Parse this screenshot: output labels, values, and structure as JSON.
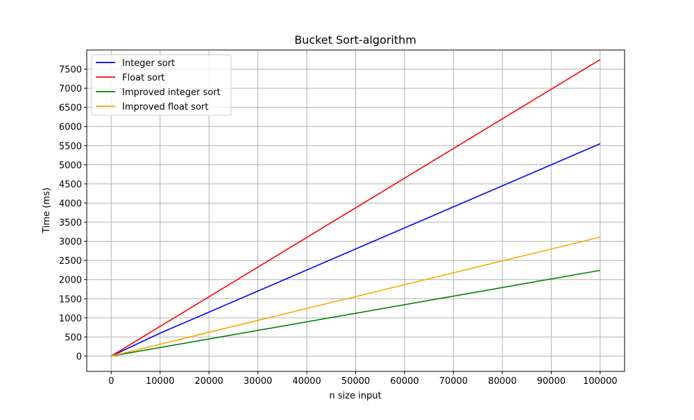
{
  "chart_data": {
    "type": "line",
    "title": "Bucket Sort-algorithm",
    "xlabel": "n size input",
    "ylabel": "Time (ms)",
    "xlim": [
      -5000,
      105000
    ],
    "ylim": [
      -400,
      8000
    ],
    "x_ticks": [
      0,
      10000,
      20000,
      30000,
      40000,
      50000,
      60000,
      70000,
      80000,
      90000,
      100000
    ],
    "y_ticks": [
      0,
      500,
      1000,
      1500,
      2000,
      2500,
      3000,
      3500,
      4000,
      4500,
      5000,
      5500,
      6000,
      6500,
      7000,
      7500
    ],
    "grid": true,
    "legend_position": "top-left",
    "series": [
      {
        "name": "Integer sort",
        "color": "#0000ff",
        "x": [
          0,
          10000,
          100000
        ],
        "y": [
          0,
          600,
          5550
        ]
      },
      {
        "name": "Float sort",
        "color": "#ff0000",
        "x": [
          0,
          100000
        ],
        "y": [
          0,
          7750
        ]
      },
      {
        "name": "Improved integer sort",
        "color": "#008000",
        "x": [
          0,
          100000
        ],
        "y": [
          0,
          2240
        ]
      },
      {
        "name": "Improved float sort",
        "color": "#ffa500",
        "x": [
          0,
          100000
        ],
        "y": [
          0,
          3110
        ]
      }
    ]
  }
}
